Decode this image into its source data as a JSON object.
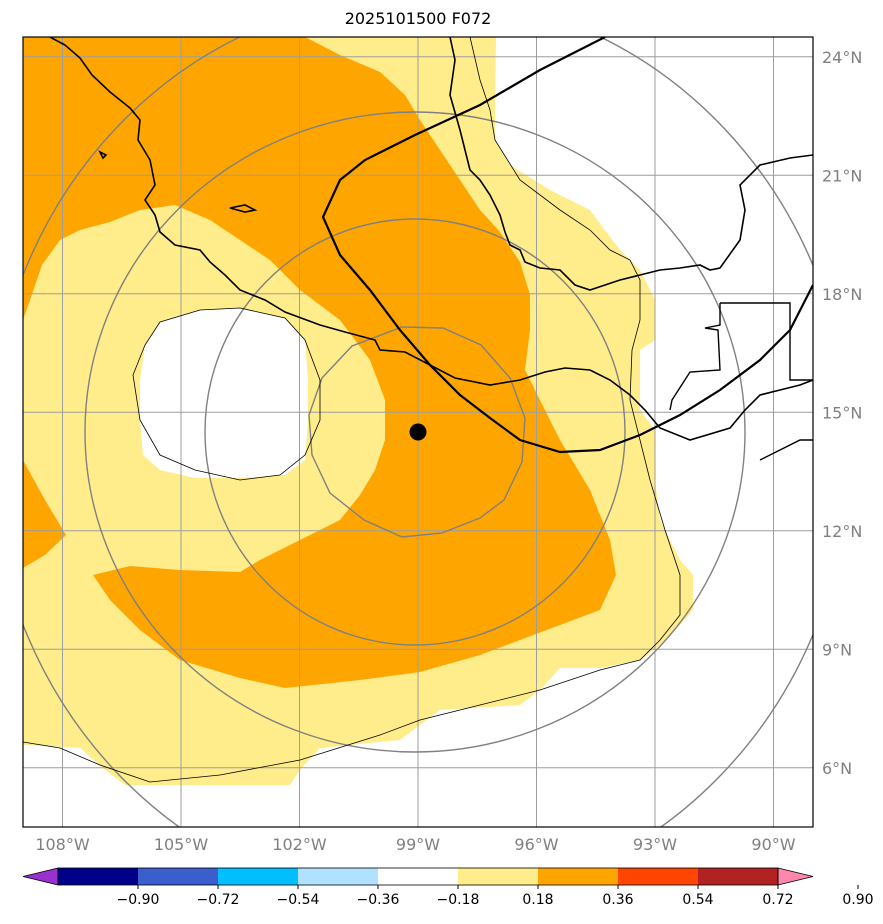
{
  "title": "2025101500 F072",
  "map": {
    "lon_range": [
      -109,
      -89
    ],
    "lat_range": [
      4.5,
      24.5
    ],
    "lat_ticks": [
      {
        "value": 24,
        "label": "24°N"
      },
      {
        "value": 21,
        "label": "21°N"
      },
      {
        "value": 18,
        "label": "18°N"
      },
      {
        "value": 15,
        "label": "15°N"
      },
      {
        "value": 12,
        "label": "12°N"
      },
      {
        "value": 9,
        "label": "9°N"
      },
      {
        "value": 6,
        "label": "6°N"
      }
    ],
    "lon_ticks": [
      {
        "value": -108,
        "label": "108°W"
      },
      {
        "value": -105,
        "label": "105°W"
      },
      {
        "value": -102,
        "label": "102°W"
      },
      {
        "value": -99,
        "label": "99°W"
      },
      {
        "value": -96,
        "label": "96°W"
      },
      {
        "value": -93,
        "label": "93°W"
      },
      {
        "value": -90,
        "label": "90°W"
      }
    ],
    "storm_center": {
      "lon": -98.6,
      "lat": 14.6
    },
    "range_rings": "concentric rings around storm center",
    "gridlines": true
  },
  "colorbar": {
    "levels": [
      "-0.90",
      "-0.72",
      "-0.54",
      "-0.36",
      "-0.18",
      "0.18",
      "0.36",
      "0.54",
      "0.72",
      "0.90"
    ],
    "colors": [
      "#9932CC",
      "#00008B",
      "#3A5FCD",
      "#00BFFF",
      "#B0E2FF",
      "#FFFFFF",
      "#FFEC8B",
      "#FFA500",
      "#FF4500",
      "#B22222",
      "#FF88AA"
    ]
  }
}
